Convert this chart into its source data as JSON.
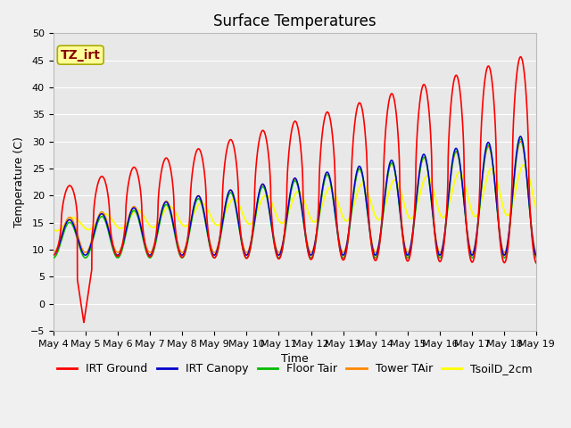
{
  "title": "Surface Temperatures",
  "xlabel": "Time",
  "ylabel": "Temperature (C)",
  "ylim": [
    -5,
    50
  ],
  "annotation_text": "TZ_irt",
  "annotation_box_facecolor": "#FFFF99",
  "annotation_box_edgecolor": "#AAAA00",
  "annotation_text_color": "#880000",
  "background_color": "#F0F0F0",
  "plot_bg_color": "#E8E8E8",
  "legend_entries": [
    "IRT Ground",
    "IRT Canopy",
    "Floor Tair",
    "Tower TAir",
    "TsoilD_2cm"
  ],
  "line_colors": [
    "#FF0000",
    "#0000CC",
    "#00BB00",
    "#FF8800",
    "#FFFF00"
  ],
  "x_tick_labels": [
    "May 4",
    "May 5",
    "May 6",
    "May 7",
    "May 8",
    "May 9",
    "May 10",
    "May 11",
    "May 12",
    "May 13",
    "May 14",
    "May 15",
    "May 16",
    "May 17",
    "May 18",
    "May 19"
  ],
  "title_fontsize": 12,
  "label_fontsize": 9,
  "tick_fontsize": 8,
  "legend_fontsize": 9,
  "grid_color": "#FFFFFF",
  "days": 15,
  "points_per_day": 144
}
